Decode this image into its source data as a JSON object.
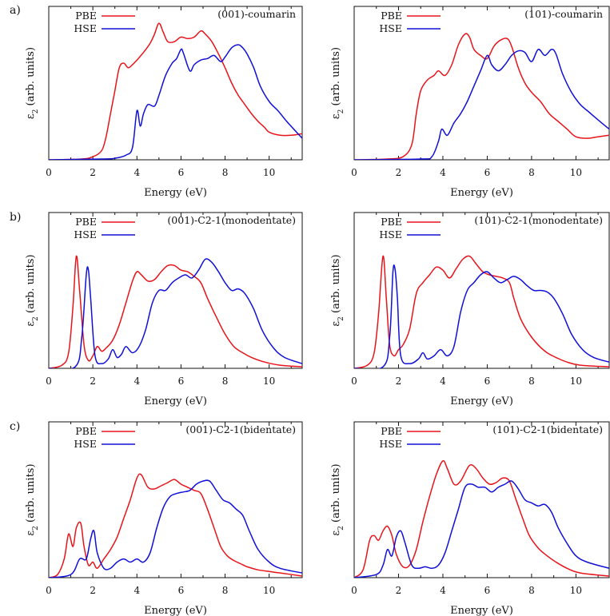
{
  "figure": {
    "rows": [
      {
        "label": "a)"
      },
      {
        "label": "b)"
      },
      {
        "label": "c)"
      }
    ]
  },
  "chart_data": [
    {
      "type": "line",
      "panel": "a-left",
      "title": "(001)-coumarin",
      "xlabel": "Energy (eV)",
      "ylabel": "ε2 (arb. units)",
      "xlim": [
        0,
        11.5
      ],
      "ylim": [
        0,
        1.0
      ],
      "xticks": [
        0,
        2,
        4,
        6,
        8,
        10
      ],
      "yticks": [],
      "legend": "top-left",
      "series": [
        {
          "name": "PBE",
          "color": "#e8141a",
          "x": [
            0,
            1.5,
            2,
            2.4,
            2.6,
            2.8,
            3.0,
            3.2,
            3.4,
            3.6,
            3.8,
            4.0,
            4.3,
            4.6,
            4.8,
            5.0,
            5.2,
            5.4,
            5.7,
            6.0,
            6.3,
            6.6,
            6.9,
            7.1,
            7.4,
            7.7,
            8.0,
            8.3,
            8.6,
            8.9,
            9.2,
            9.5,
            9.8,
            10.0,
            10.5,
            11.0,
            11.5
          ],
          "y": [
            0,
            0.005,
            0.02,
            0.06,
            0.15,
            0.3,
            0.45,
            0.6,
            0.63,
            0.6,
            0.62,
            0.65,
            0.7,
            0.76,
            0.82,
            0.89,
            0.83,
            0.77,
            0.77,
            0.8,
            0.79,
            0.8,
            0.84,
            0.82,
            0.77,
            0.69,
            0.6,
            0.5,
            0.42,
            0.36,
            0.3,
            0.25,
            0.21,
            0.18,
            0.16,
            0.16,
            0.17
          ]
        },
        {
          "name": "HSE",
          "color": "#1010d8",
          "x": [
            0,
            2.5,
            3.0,
            3.5,
            3.8,
            4.0,
            4.15,
            4.3,
            4.5,
            4.8,
            5.0,
            5.3,
            5.6,
            5.8,
            6.0,
            6.1,
            6.4,
            6.6,
            6.9,
            7.2,
            7.5,
            7.8,
            8.0,
            8.3,
            8.6,
            8.8,
            9.0,
            9.3,
            9.6,
            10.0,
            10.4,
            10.8,
            11.5
          ],
          "y": [
            0,
            0.005,
            0.01,
            0.03,
            0.08,
            0.32,
            0.22,
            0.3,
            0.36,
            0.35,
            0.42,
            0.55,
            0.63,
            0.66,
            0.72,
            0.7,
            0.58,
            0.62,
            0.65,
            0.66,
            0.68,
            0.64,
            0.67,
            0.73,
            0.75,
            0.73,
            0.69,
            0.6,
            0.48,
            0.38,
            0.32,
            0.25,
            0.14
          ]
        }
      ]
    },
    {
      "type": "line",
      "panel": "a-right",
      "title": "(101)-coumarin",
      "xlabel": "Energy (eV)",
      "ylabel": "ε2 (arb. units)",
      "xlim": [
        0,
        11.5
      ],
      "ylim": [
        0,
        1.0
      ],
      "xticks": [
        0,
        2,
        4,
        6,
        8,
        10
      ],
      "yticks": [],
      "legend": "top-left",
      "series": [
        {
          "name": "PBE",
          "color": "#e8141a",
          "x": [
            0,
            1.5,
            2.2,
            2.6,
            2.8,
            3.0,
            3.3,
            3.6,
            3.8,
            4.1,
            4.4,
            4.7,
            5.0,
            5.2,
            5.4,
            5.7,
            6.0,
            6.3,
            6.6,
            6.9,
            7.1,
            7.4,
            7.7,
            8.0,
            8.4,
            8.8,
            9.2,
            9.6,
            10.0,
            10.5,
            11.0,
            11.5
          ],
          "y": [
            0,
            0.005,
            0.02,
            0.1,
            0.3,
            0.45,
            0.52,
            0.55,
            0.58,
            0.55,
            0.62,
            0.75,
            0.82,
            0.8,
            0.72,
            0.68,
            0.66,
            0.74,
            0.78,
            0.79,
            0.74,
            0.6,
            0.5,
            0.44,
            0.38,
            0.3,
            0.25,
            0.2,
            0.15,
            0.14,
            0.15,
            0.16
          ]
        },
        {
          "name": "HSE",
          "color": "#1010d8",
          "x": [
            0,
            3.0,
            3.5,
            3.8,
            3.95,
            4.2,
            4.5,
            4.8,
            5.1,
            5.4,
            5.7,
            6.0,
            6.2,
            6.5,
            6.8,
            7.1,
            7.4,
            7.7,
            8.0,
            8.3,
            8.6,
            8.9,
            9.1,
            9.4,
            9.8,
            10.2,
            10.6,
            11.0,
            11.5
          ],
          "y": [
            0,
            0.005,
            0.02,
            0.12,
            0.2,
            0.16,
            0.24,
            0.3,
            0.38,
            0.48,
            0.58,
            0.68,
            0.62,
            0.58,
            0.62,
            0.68,
            0.71,
            0.7,
            0.64,
            0.72,
            0.68,
            0.72,
            0.69,
            0.56,
            0.44,
            0.36,
            0.31,
            0.26,
            0.2
          ]
        }
      ]
    },
    {
      "type": "line",
      "panel": "b-left",
      "title": "(001)-C2-1(monodentate)",
      "xlabel": "Energy (eV)",
      "ylabel": "ε2 (arb. units)",
      "xlim": [
        0,
        11.5
      ],
      "ylim": [
        0,
        1.0
      ],
      "xticks": [
        0,
        2,
        4,
        6,
        8,
        10
      ],
      "yticks": [],
      "legend": "top-left",
      "series": [
        {
          "name": "PBE",
          "color": "#e8141a",
          "x": [
            0,
            0.6,
            0.9,
            1.1,
            1.25,
            1.4,
            1.6,
            1.8,
            2.0,
            2.2,
            2.4,
            2.6,
            2.9,
            3.2,
            3.5,
            3.8,
            4.0,
            4.2,
            4.5,
            4.8,
            5.1,
            5.4,
            5.7,
            6.0,
            6.3,
            6.6,
            6.9,
            7.2,
            7.6,
            8.0,
            8.4,
            8.8,
            9.2,
            9.8,
            10.5,
            11.5
          ],
          "y": [
            0,
            0.02,
            0.1,
            0.4,
            0.72,
            0.5,
            0.15,
            0.05,
            0.08,
            0.14,
            0.11,
            0.13,
            0.18,
            0.28,
            0.42,
            0.56,
            0.62,
            0.6,
            0.56,
            0.57,
            0.62,
            0.66,
            0.66,
            0.63,
            0.62,
            0.59,
            0.55,
            0.45,
            0.33,
            0.22,
            0.14,
            0.1,
            0.07,
            0.04,
            0.02,
            0.01
          ]
        },
        {
          "name": "HSE",
          "color": "#1010d8",
          "x": [
            0,
            1.2,
            1.5,
            1.7,
            1.8,
            1.9,
            2.1,
            2.4,
            2.7,
            2.9,
            3.1,
            3.3,
            3.5,
            3.8,
            4.1,
            4.4,
            4.7,
            5.0,
            5.3,
            5.6,
            5.9,
            6.2,
            6.5,
            6.8,
            7.1,
            7.4,
            7.7,
            8.0,
            8.3,
            8.6,
            8.9,
            9.3,
            9.7,
            10.2,
            10.7,
            11.5
          ],
          "y": [
            0,
            0.01,
            0.2,
            0.6,
            0.63,
            0.45,
            0.08,
            0.03,
            0.06,
            0.12,
            0.07,
            0.09,
            0.14,
            0.1,
            0.14,
            0.25,
            0.42,
            0.5,
            0.5,
            0.55,
            0.58,
            0.6,
            0.58,
            0.63,
            0.7,
            0.68,
            0.62,
            0.55,
            0.5,
            0.51,
            0.48,
            0.38,
            0.24,
            0.13,
            0.07,
            0.03
          ]
        }
      ]
    },
    {
      "type": "line",
      "panel": "b-right",
      "title": "(101)-C2-1(monodentate)",
      "xlabel": "Energy (eV)",
      "ylabel": "ε2 (arb. units)",
      "xlim": [
        0,
        11.5
      ],
      "ylim": [
        0,
        1.0
      ],
      "xticks": [
        0,
        2,
        4,
        6,
        8,
        10
      ],
      "yticks": [],
      "legend": "top-left",
      "series": [
        {
          "name": "PBE",
          "color": "#e8141a",
          "x": [
            0,
            0.6,
            0.9,
            1.1,
            1.3,
            1.45,
            1.6,
            1.8,
            2.0,
            2.2,
            2.5,
            2.8,
            3.1,
            3.4,
            3.7,
            4.0,
            4.3,
            4.6,
            4.9,
            5.2,
            5.5,
            5.8,
            6.1,
            6.4,
            6.7,
            7.0,
            7.2,
            7.5,
            7.9,
            8.3,
            8.7,
            9.1,
            9.6,
            10.2,
            11.5
          ],
          "y": [
            0,
            0.02,
            0.1,
            0.35,
            0.72,
            0.45,
            0.15,
            0.08,
            0.12,
            0.15,
            0.25,
            0.48,
            0.55,
            0.6,
            0.65,
            0.63,
            0.58,
            0.64,
            0.7,
            0.72,
            0.67,
            0.62,
            0.6,
            0.59,
            0.58,
            0.55,
            0.45,
            0.32,
            0.22,
            0.15,
            0.1,
            0.07,
            0.04,
            0.02,
            0.01
          ]
        },
        {
          "name": "HSE",
          "color": "#1010d8",
          "x": [
            0,
            1.3,
            1.6,
            1.75,
            1.85,
            1.95,
            2.1,
            2.5,
            2.9,
            3.1,
            3.3,
            3.6,
            3.9,
            4.2,
            4.5,
            4.8,
            5.1,
            5.4,
            5.7,
            6.0,
            6.3,
            6.6,
            6.9,
            7.2,
            7.5,
            7.8,
            8.1,
            8.4,
            8.7,
            9.0,
            9.4,
            9.8,
            10.3,
            10.8,
            11.5
          ],
          "y": [
            0,
            0.01,
            0.2,
            0.62,
            0.63,
            0.45,
            0.08,
            0.03,
            0.06,
            0.1,
            0.06,
            0.08,
            0.12,
            0.08,
            0.14,
            0.36,
            0.5,
            0.55,
            0.6,
            0.62,
            0.58,
            0.55,
            0.57,
            0.59,
            0.57,
            0.53,
            0.5,
            0.5,
            0.49,
            0.45,
            0.35,
            0.22,
            0.12,
            0.07,
            0.04
          ]
        }
      ]
    },
    {
      "type": "line",
      "panel": "c-left",
      "title": "(001)-C2-1(bidentate)",
      "xlabel": "Energy (eV)",
      "ylabel": "ε2 (arb. units)",
      "xlim": [
        0,
        11.5
      ],
      "ylim": [
        0,
        1.0
      ],
      "xticks": [
        0,
        2,
        4,
        6,
        8,
        10
      ],
      "yticks": [],
      "legend": "top-left",
      "series": [
        {
          "name": "PBE",
          "color": "#e8141a",
          "x": [
            0,
            0.4,
            0.7,
            0.9,
            1.1,
            1.25,
            1.45,
            1.6,
            1.8,
            2.0,
            2.2,
            2.5,
            2.8,
            3.1,
            3.4,
            3.7,
            4.0,
            4.2,
            4.5,
            4.8,
            5.1,
            5.4,
            5.7,
            6.0,
            6.3,
            6.6,
            6.9,
            7.2,
            7.5,
            7.8,
            8.1,
            8.4,
            8.7,
            9.0,
            9.5,
            10.0,
            10.5,
            11.5
          ],
          "y": [
            0,
            0.02,
            0.12,
            0.28,
            0.2,
            0.32,
            0.35,
            0.2,
            0.08,
            0.1,
            0.06,
            0.12,
            0.18,
            0.26,
            0.38,
            0.5,
            0.64,
            0.66,
            0.58,
            0.57,
            0.59,
            0.61,
            0.63,
            0.6,
            0.58,
            0.56,
            0.54,
            0.44,
            0.32,
            0.2,
            0.14,
            0.11,
            0.09,
            0.07,
            0.05,
            0.04,
            0.03,
            0.01
          ]
        },
        {
          "name": "HSE",
          "color": "#1010d8",
          "x": [
            0,
            1.0,
            1.4,
            1.7,
            1.9,
            2.05,
            2.2,
            2.5,
            2.8,
            3.1,
            3.4,
            3.7,
            4.0,
            4.3,
            4.6,
            4.9,
            5.2,
            5.5,
            5.8,
            6.1,
            6.4,
            6.7,
            7.0,
            7.3,
            7.6,
            7.9,
            8.2,
            8.5,
            8.8,
            9.1,
            9.5,
            10.0,
            10.5,
            11.5
          ],
          "y": [
            0,
            0.02,
            0.12,
            0.12,
            0.25,
            0.3,
            0.16,
            0.06,
            0.06,
            0.1,
            0.12,
            0.1,
            0.12,
            0.1,
            0.16,
            0.32,
            0.45,
            0.52,
            0.54,
            0.55,
            0.56,
            0.6,
            0.62,
            0.62,
            0.56,
            0.5,
            0.48,
            0.44,
            0.4,
            0.3,
            0.18,
            0.1,
            0.06,
            0.03
          ]
        }
      ]
    },
    {
      "type": "line",
      "panel": "c-right",
      "title": "(101)-C2-1(bidentate)",
      "xlabel": "Energy (eV)",
      "ylabel": "ε2 (arb. units)",
      "xlim": [
        0,
        11.5
      ],
      "ylim": [
        0,
        1.0
      ],
      "xticks": [
        0,
        2,
        4,
        6,
        8,
        10
      ],
      "yticks": [],
      "legend": "top-left",
      "series": [
        {
          "name": "PBE",
          "color": "#e8141a",
          "x": [
            0,
            0.4,
            0.7,
            0.9,
            1.1,
            1.3,
            1.5,
            1.7,
            1.9,
            2.2,
            2.5,
            2.8,
            3.1,
            3.4,
            3.7,
            4.0,
            4.2,
            4.5,
            4.8,
            5.2,
            5.5,
            5.8,
            6.1,
            6.4,
            6.7,
            7.0,
            7.3,
            7.6,
            7.9,
            8.3,
            8.7,
            9.1,
            9.6,
            10.2,
            11.5
          ],
          "y": [
            0,
            0.05,
            0.24,
            0.27,
            0.24,
            0.3,
            0.33,
            0.27,
            0.15,
            0.07,
            0.08,
            0.18,
            0.36,
            0.52,
            0.66,
            0.75,
            0.7,
            0.6,
            0.62,
            0.72,
            0.7,
            0.64,
            0.6,
            0.61,
            0.64,
            0.62,
            0.5,
            0.38,
            0.27,
            0.19,
            0.14,
            0.1,
            0.06,
            0.03,
            0.01
          ]
        },
        {
          "name": "HSE",
          "color": "#1010d8",
          "x": [
            0,
            1.0,
            1.3,
            1.5,
            1.7,
            1.9,
            2.1,
            2.3,
            2.6,
            2.9,
            3.2,
            3.5,
            3.8,
            4.1,
            4.4,
            4.7,
            5.0,
            5.3,
            5.6,
            5.9,
            6.2,
            6.5,
            6.8,
            7.1,
            7.4,
            7.7,
            8.0,
            8.3,
            8.6,
            8.9,
            9.2,
            9.6,
            10.0,
            10.5,
            11.5
          ],
          "y": [
            0,
            0.02,
            0.08,
            0.18,
            0.14,
            0.26,
            0.3,
            0.22,
            0.08,
            0.06,
            0.07,
            0.06,
            0.08,
            0.16,
            0.3,
            0.44,
            0.58,
            0.6,
            0.58,
            0.58,
            0.55,
            0.58,
            0.6,
            0.62,
            0.57,
            0.5,
            0.48,
            0.46,
            0.47,
            0.42,
            0.32,
            0.22,
            0.14,
            0.1,
            0.06
          ]
        }
      ]
    }
  ]
}
